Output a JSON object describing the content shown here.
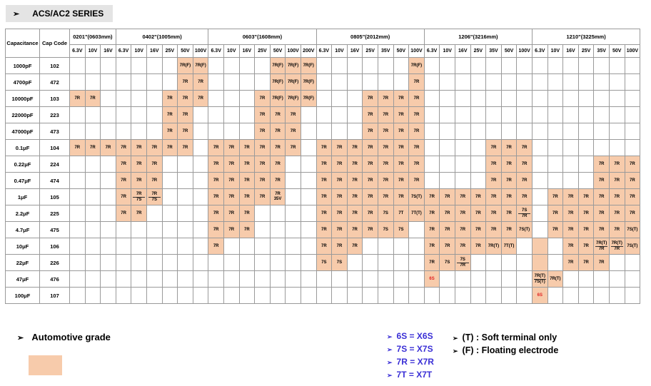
{
  "title": "ACS/AC2 SERIES",
  "arrow": "➢",
  "header": {
    "capacitance_label": "Capacitance",
    "cap_code_label": "Cap Code",
    "groups": [
      {
        "label": "0201\"(0603mm)",
        "voltages": [
          "6.3V",
          "10V",
          "16V"
        ]
      },
      {
        "label": "0402\"(1005mm)",
        "voltages": [
          "6.3V",
          "10V",
          "16V",
          "25V",
          "50V",
          "100V"
        ]
      },
      {
        "label": "0603\"(1608mm)",
        "voltages": [
          "6.3V",
          "10V",
          "16V",
          "25V",
          "50V",
          "100V",
          "200V"
        ]
      },
      {
        "label": "0805\"(2012mm)",
        "voltages": [
          "6.3V",
          "10V",
          "16V",
          "25V",
          "35V",
          "50V",
          "100V"
        ]
      },
      {
        "label": "1206\"(3216mm)",
        "voltages": [
          "6.3V",
          "10V",
          "16V",
          "25V",
          "35V",
          "50V",
          "100V"
        ]
      },
      {
        "label": "1210\"(3225mm)",
        "voltages": [
          "6.3V",
          "10V",
          "16V",
          "25V",
          "35V",
          "50V",
          "100V"
        ]
      }
    ]
  },
  "rows": [
    {
      "cap": "1000pF",
      "code": "102",
      "cells": {
        "7": "7R(F)",
        "8": "7R(F)",
        "13": "7R(F)",
        "14": "7R(F)",
        "15": "7R(F)",
        "22": "7R(F)"
      }
    },
    {
      "cap": "4700pF",
      "code": "472",
      "cells": {
        "7": "7R",
        "8": "7R",
        "13": "7R(F)",
        "14": "7R(F)",
        "15": "7R(F)",
        "22": "7R"
      }
    },
    {
      "cap": "10000pF",
      "code": "103",
      "cells": {
        "0": "7R",
        "1": "7R",
        "6": "7R",
        "7": "7R",
        "8": "7R",
        "12": "7R",
        "13": "7R(F)",
        "14": "7R(F)",
        "15": "7R(F)",
        "19": "7R",
        "20": "7R",
        "21": "7R",
        "22": "7R"
      }
    },
    {
      "cap": "22000pF",
      "code": "223",
      "cells": {
        "6": "7R",
        "7": "7R",
        "12": "7R",
        "13": "7R",
        "14": "7R",
        "19": "7R",
        "20": "7R",
        "21": "7R",
        "22": "7R"
      }
    },
    {
      "cap": "47000pF",
      "code": "473",
      "cells": {
        "6": "7R",
        "7": "7R",
        "12": "7R",
        "13": "7R",
        "14": "7R",
        "19": "7R",
        "20": "7R",
        "21": "7R",
        "22": "7R"
      }
    },
    {
      "cap": "0.1μF",
      "code": "104",
      "cells": {
        "0": "7R",
        "1": "7R",
        "2": "7R",
        "3": "7R",
        "4": "7R",
        "5": "7R",
        "6": "7R",
        "7": "7R",
        "9": "7R",
        "10": "7R",
        "11": "7R",
        "12": "7R",
        "13": "7R",
        "14": "7R",
        "16": "7R",
        "17": "7R",
        "18": "7R",
        "19": "7R",
        "20": "7R",
        "21": "7R",
        "22": "7R",
        "27": "7R",
        "28": "7R",
        "29": "7R"
      }
    },
    {
      "cap": "0.22μF",
      "code": "224",
      "cells": {
        "3": "7R",
        "4": "7R",
        "5": "7R",
        "9": "7R",
        "10": "7R",
        "11": "7R",
        "12": "7R",
        "13": "7R",
        "16": "7R",
        "17": "7R",
        "18": "7R",
        "19": "7R",
        "20": "7R",
        "21": "7R",
        "22": "7R",
        "27": "7R",
        "28": "7R",
        "29": "7R",
        "34": "7R",
        "35": "7R",
        "36": "7R"
      }
    },
    {
      "cap": "0.47μF",
      "code": "474",
      "cells": {
        "3": "7R",
        "4": "7R",
        "5": "7R",
        "9": "7R",
        "10": "7R",
        "11": "7R",
        "12": "7R",
        "13": "7R",
        "16": "7R",
        "17": "7R",
        "18": "7R",
        "19": "7R",
        "20": "7R",
        "21": "7R",
        "22": "7R",
        "27": "7R",
        "28": "7R",
        "29": "7R",
        "34": "7R",
        "35": "7R",
        "36": "7R"
      }
    },
    {
      "cap": "1μF",
      "code": "105",
      "cells": {
        "3": "7R",
        "4": "7R/7S",
        "5": "7R/7S",
        "9": "7R",
        "10": "7R",
        "11": "7R",
        "12": "7R",
        "13": "7R/35V",
        "16": "7R",
        "17": "7R",
        "18": "7R",
        "19": "7R",
        "20": "7R",
        "21": "7R",
        "22": "7S(T)",
        "23": "7R",
        "24": "7R",
        "25": "7R",
        "26": "7R",
        "27": "7R",
        "28": "7R",
        "29": "7R",
        "31": "7R",
        "32": "7R",
        "33": "7R",
        "34": "7R",
        "35": "7R",
        "36": "7R"
      }
    },
    {
      "cap": "2.2μF",
      "code": "225",
      "cells": {
        "3": "7R",
        "4": "7R",
        "9": "7R",
        "10": "7R",
        "11": "7R",
        "16": "7R",
        "17": "7R",
        "18": "7R",
        "19": "7R",
        "20": "7S",
        "21": "7T",
        "22": "7T(T)",
        "23": "7R",
        "24": "7R",
        "25": "7R",
        "26": "7R",
        "27": "7R",
        "28": "7R",
        "29": "7S/7R",
        "31": "7R",
        "32": "7R",
        "33": "7R",
        "34": "7R",
        "35": "7R",
        "36": "7R"
      }
    },
    {
      "cap": "4.7μF",
      "code": "475",
      "cells": {
        "9": "7R",
        "10": "7R",
        "11": "7R",
        "16": "7R",
        "17": "7R",
        "18": "7R",
        "19": "7R",
        "20": "7S",
        "21": "7S",
        "23": "7R",
        "24": "7R",
        "25": "7R",
        "26": "7R",
        "27": "7R",
        "28": "7R",
        "29": "7S(T)",
        "31": "7R",
        "32": "7R",
        "33": "7R",
        "34": "7R",
        "35": "7R",
        "36": "7S(T)"
      }
    },
    {
      "cap": "10μF",
      "code": "106",
      "cells": {
        "9": "7R",
        "16": "7R",
        "17": "7R",
        "18": "7R",
        "23": "7R",
        "24": "7R",
        "25": "7R",
        "26": "7R",
        "27": "7R(T)",
        "28": "7T(T)",
        "30": "",
        "32": "7R",
        "33": "7R",
        "34": "7R(T)/7R",
        "35": "7R(T)/7R",
        "36": "7S(T)"
      }
    },
    {
      "cap": "22μF",
      "code": "226",
      "cells": {
        "16": "7S",
        "17": "7S",
        "23": "7R",
        "24": "7S",
        "25": "7S/7R",
        "30": "",
        "32": "7R",
        "33": "7R",
        "34": "7R"
      }
    },
    {
      "cap": "47μF",
      "code": "476",
      "cells": {
        "23": "6S",
        "30": "7R(T)/7S(T)",
        "31": "7R(T)"
      }
    },
    {
      "cap": "100μF",
      "code": "107",
      "cells": {
        "30": "6S"
      }
    }
  ],
  "legend": {
    "automotive": "Automotive grade",
    "automotive_color": "#f7cbab",
    "codes": [
      "6S = X6S",
      "7S = X7S",
      "7R = X7R",
      "7T = X7T"
    ],
    "notes": [
      "(T) : Soft terminal only",
      "(F) : Floating electrode"
    ],
    "code_color": "#3a2fd6"
  }
}
